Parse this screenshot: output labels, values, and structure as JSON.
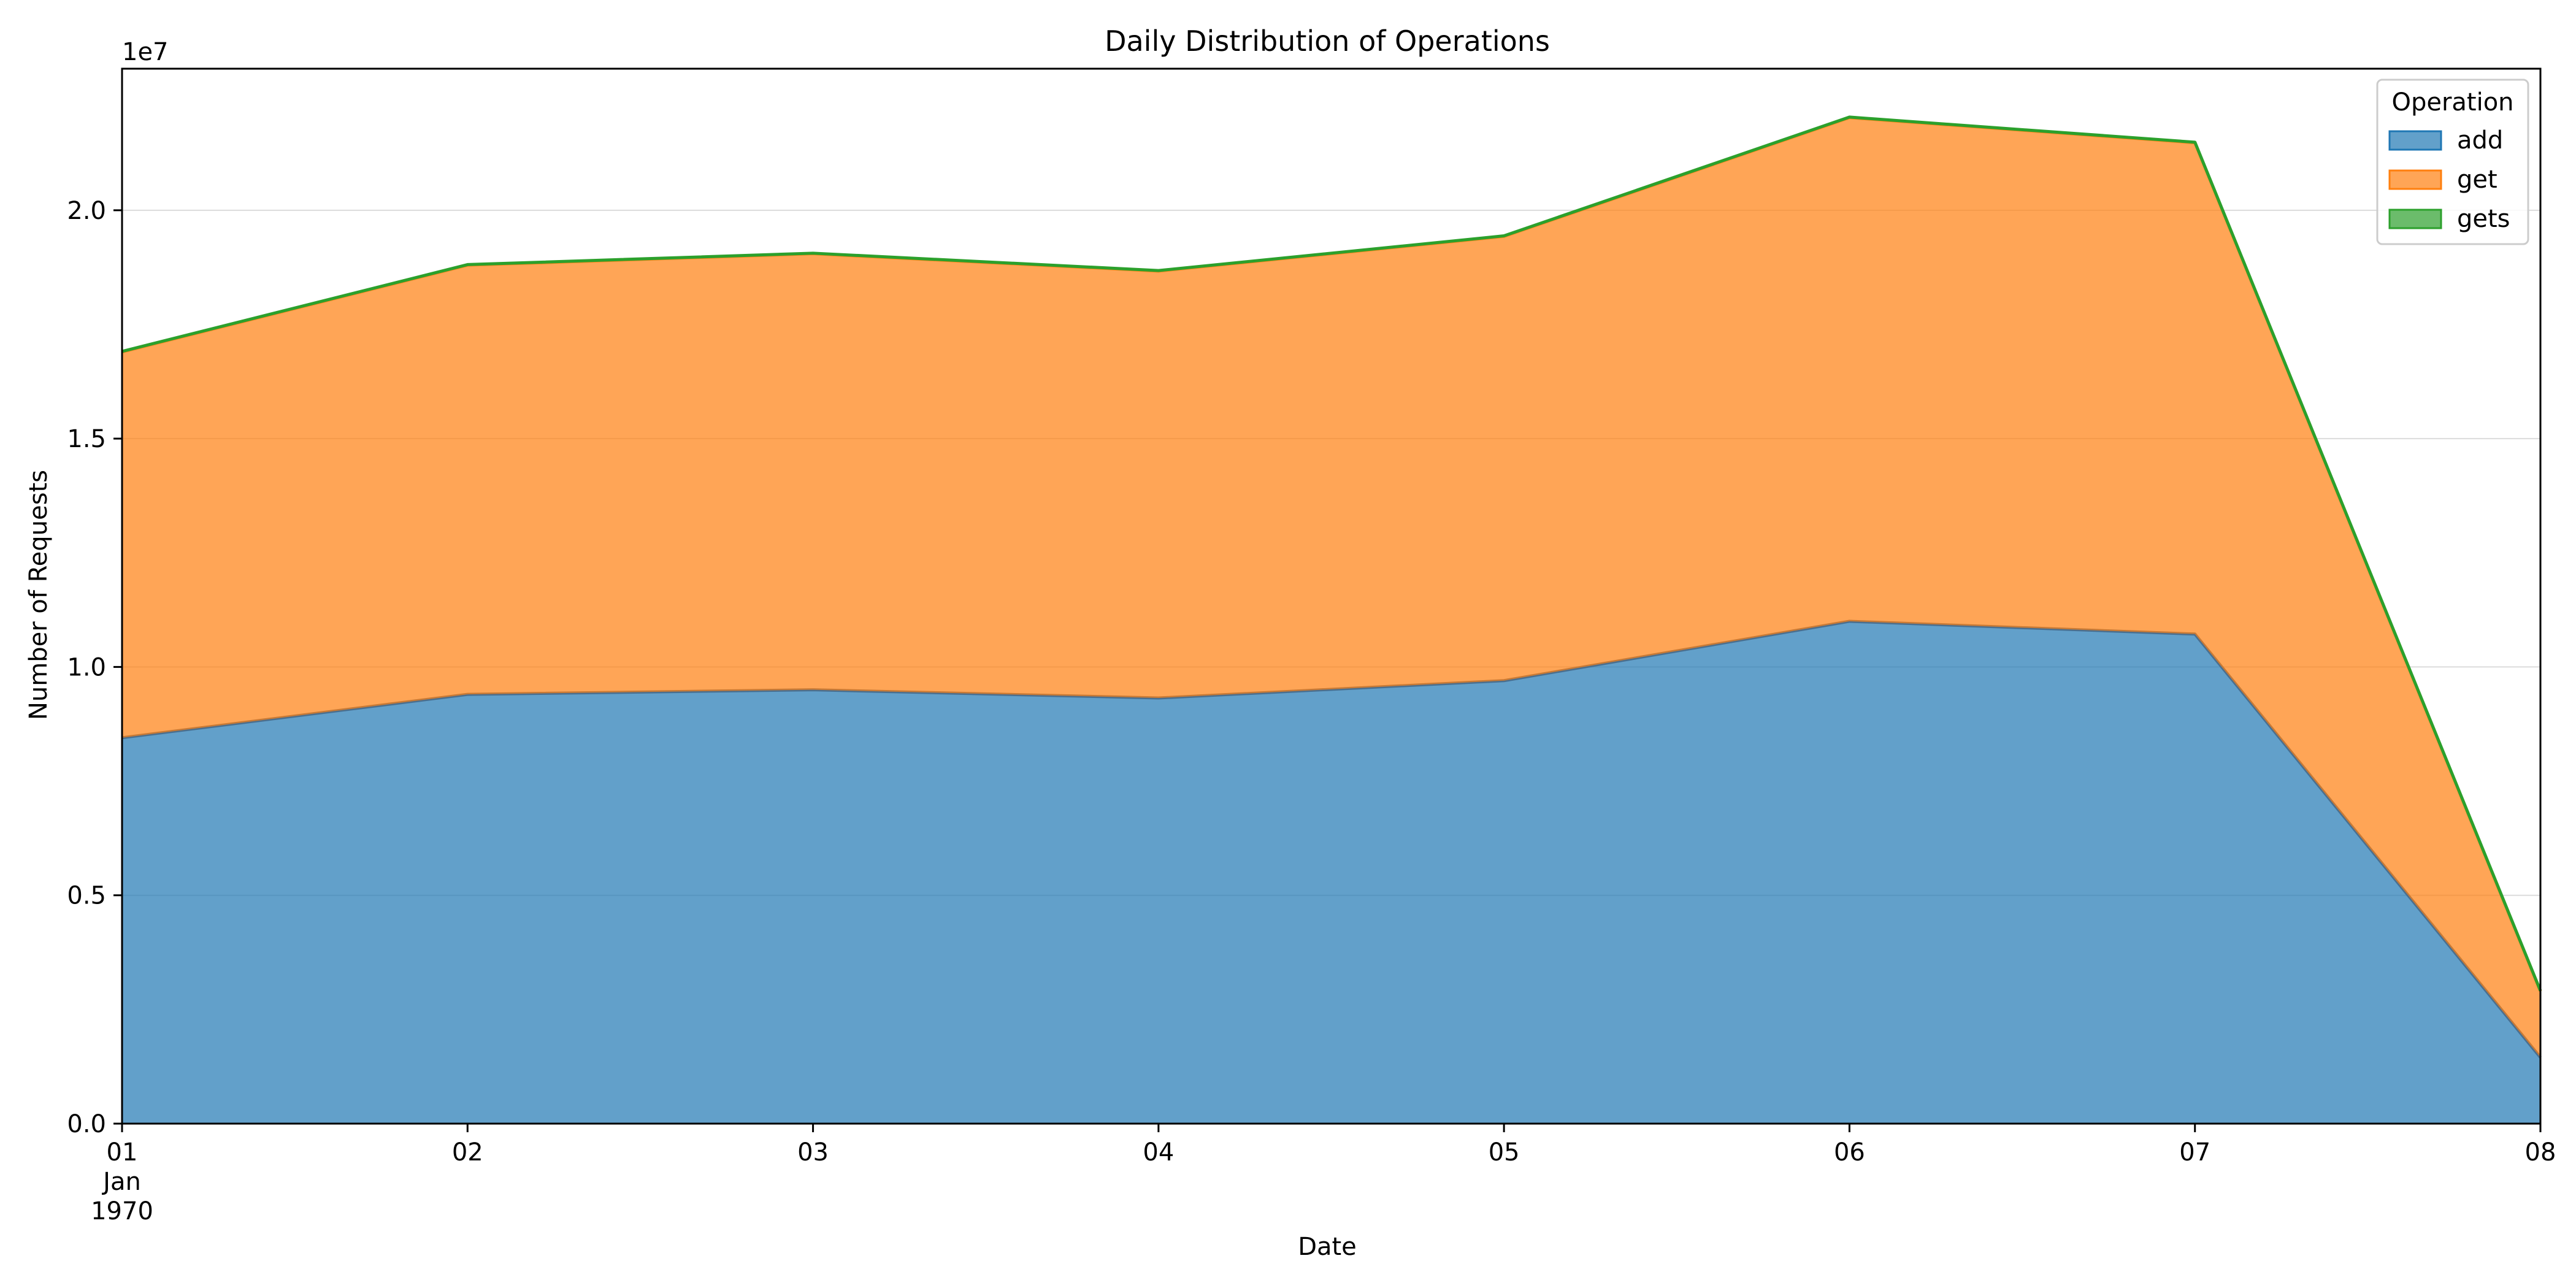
{
  "colors": {
    "add": "#1f77b4",
    "get": "#ff7f0e",
    "gets": "#2ca02c",
    "add_line": "#4a6f8f"
  },
  "chart_data": {
    "type": "area",
    "stacked": true,
    "title": "Daily Distribution of Operations",
    "xlabel": "Date",
    "ylabel": "Number of Requests",
    "y_scale_label": "1e7",
    "x": [
      "1970-01-01",
      "1970-01-02",
      "1970-01-03",
      "1970-01-04",
      "1970-01-05",
      "1970-01-06",
      "1970-01-07",
      "1970-01-08"
    ],
    "x_tick_labels": [
      "01",
      "02",
      "03",
      "04",
      "05",
      "06",
      "07",
      "08"
    ],
    "x_tick_sublabels": [
      "Jan",
      "1970"
    ],
    "y_ticks": [
      0,
      5000000,
      10000000,
      15000000,
      20000000
    ],
    "y_tick_labels": [
      "0.0",
      "0.5",
      "1.0",
      "1.5",
      "2.0"
    ],
    "ylim": [
      0,
      23100000
    ],
    "grid": "horizontal",
    "legend": {
      "title": "Operation",
      "placement": "top-right"
    },
    "series": [
      {
        "name": "add",
        "values": [
          8450000,
          9400000,
          9500000,
          9320000,
          9700000,
          11000000,
          10720000,
          1450000
        ]
      },
      {
        "name": "get",
        "values": [
          8450000,
          9400000,
          9550000,
          9350000,
          9730000,
          11030000,
          10760000,
          1450000
        ]
      },
      {
        "name": "gets",
        "values": [
          10000,
          10000,
          10000,
          10000,
          10000,
          10000,
          10000,
          10000
        ]
      }
    ]
  }
}
